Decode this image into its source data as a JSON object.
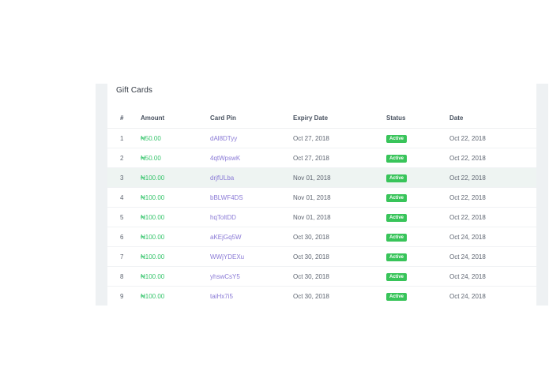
{
  "card": {
    "title": "Gift Cards"
  },
  "table": {
    "headers": {
      "num": "#",
      "amount": "Amount",
      "pin": "Card Pin",
      "expiry": "Expiry Date",
      "status": "Status",
      "date": "Date"
    },
    "rows": [
      {
        "num": "1",
        "amount": "₦50.00",
        "pin": "dAl8DTyy",
        "expiry": "Oct 27, 2018",
        "status": "Active",
        "date": "Oct 22, 2018"
      },
      {
        "num": "2",
        "amount": "₦50.00",
        "pin": "4qtWpswK",
        "expiry": "Oct 27, 2018",
        "status": "Active",
        "date": "Oct 22, 2018"
      },
      {
        "num": "3",
        "amount": "₦100.00",
        "pin": "drjfULba",
        "expiry": "Nov 01, 2018",
        "status": "Active",
        "date": "Oct 22, 2018"
      },
      {
        "num": "4",
        "amount": "₦100.00",
        "pin": "bBLWF4DS",
        "expiry": "Nov 01, 2018",
        "status": "Active",
        "date": "Oct 22, 2018"
      },
      {
        "num": "5",
        "amount": "₦100.00",
        "pin": "hqToltDD",
        "expiry": "Nov 01, 2018",
        "status": "Active",
        "date": "Oct 22, 2018"
      },
      {
        "num": "6",
        "amount": "₦100.00",
        "pin": "aKEjGq5W",
        "expiry": "Oct 30, 2018",
        "status": "Active",
        "date": "Oct 24, 2018"
      },
      {
        "num": "7",
        "amount": "₦100.00",
        "pin": "WWjYDEXu",
        "expiry": "Oct 30, 2018",
        "status": "Active",
        "date": "Oct 24, 2018"
      },
      {
        "num": "8",
        "amount": "₦100.00",
        "pin": "yhswCsY5",
        "expiry": "Oct 30, 2018",
        "status": "Active",
        "date": "Oct 24, 2018"
      },
      {
        "num": "9",
        "amount": "₦100.00",
        "pin": "taiHx7i5",
        "expiry": "Oct 30, 2018",
        "status": "Active",
        "date": "Oct 24, 2018"
      }
    ]
  },
  "colors": {
    "amount": "#34c46a",
    "pin": "#8a7ad6",
    "badge": "#38c45a",
    "highlight_row": "#eef4f2"
  }
}
